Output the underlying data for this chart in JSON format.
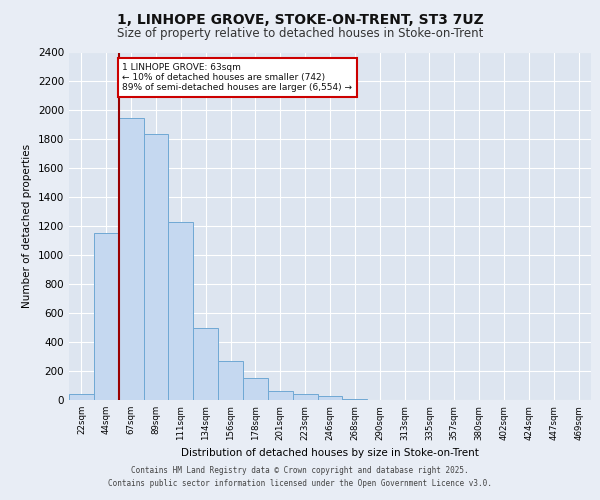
{
  "title_line1": "1, LINHOPE GROVE, STOKE-ON-TRENT, ST3 7UZ",
  "title_line2": "Size of property relative to detached houses in Stoke-on-Trent",
  "xlabel": "Distribution of detached houses by size in Stoke-on-Trent",
  "ylabel": "Number of detached properties",
  "footer_line1": "Contains HM Land Registry data © Crown copyright and database right 2025.",
  "footer_line2": "Contains public sector information licensed under the Open Government Licence v3.0.",
  "bar_labels": [
    "22sqm",
    "44sqm",
    "67sqm",
    "89sqm",
    "111sqm",
    "134sqm",
    "156sqm",
    "178sqm",
    "201sqm",
    "223sqm",
    "246sqm",
    "268sqm",
    "290sqm",
    "313sqm",
    "335sqm",
    "357sqm",
    "380sqm",
    "402sqm",
    "424sqm",
    "447sqm",
    "469sqm"
  ],
  "bar_values": [
    40,
    1150,
    1950,
    1840,
    1230,
    500,
    270,
    155,
    60,
    40,
    30,
    5,
    3,
    2,
    2,
    1,
    0,
    0,
    0,
    0,
    0
  ],
  "bar_color": "#c5d8f0",
  "bar_edge_color": "#6fa8d4",
  "plot_bg_color": "#dde5f0",
  "fig_bg_color": "#e8edf5",
  "grid_color": "#ffffff",
  "property_name": "1 LINHOPE GROVE: 63sqm",
  "annotation_line2": "← 10% of detached houses are smaller (742)",
  "annotation_line3": "89% of semi-detached houses are larger (6,554) →",
  "vline_color": "#990000",
  "annotation_box_color": "#cc0000",
  "ylim": [
    0,
    2400
  ],
  "yticks": [
    0,
    200,
    400,
    600,
    800,
    1000,
    1200,
    1400,
    1600,
    1800,
    2000,
    2200,
    2400
  ],
  "vline_x": 1.5
}
